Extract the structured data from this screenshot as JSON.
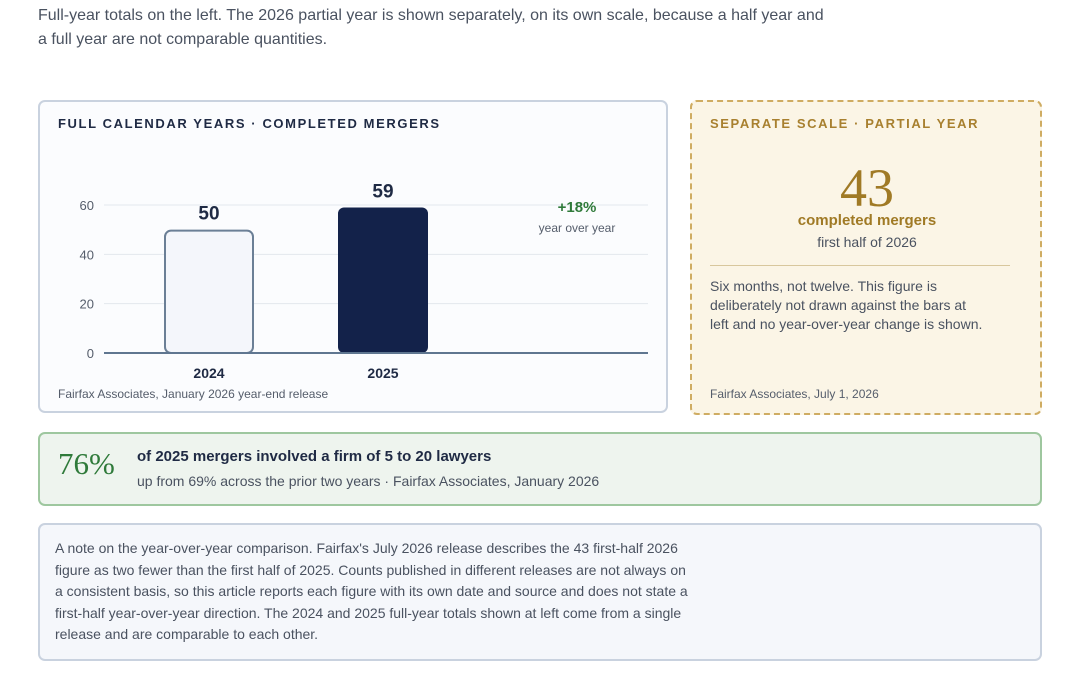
{
  "intro": "Full-year totals on the left. The 2026 partial year is shown separately, on its own scale, because a half year and a full year are not comparable quantities.",
  "full_card": {
    "title": "FULL CALENDAR YEARS · COMPLETED MERGERS",
    "source": "Fairfax Associates, January 2026 year-end release"
  },
  "partial_card": {
    "title": "SEPARATE SCALE · PARTIAL YEAR",
    "value": "43",
    "label": "completed mergers",
    "sublabel": "first half of 2026",
    "note": "Six months, not twelve. This figure is deliberately not drawn against the bars at left and no year-over-year change is shown.",
    "source": "Fairfax Associates, July 1, 2026"
  },
  "stat_card": {
    "value": "76%",
    "headline": "of 2025 mergers involved a firm of 5 to 20 lawyers",
    "sub": "up from 69% across the prior two years · Fairfax Associates, January 2026"
  },
  "note_card": {
    "text": "A note on the year-over-year comparison. Fairfax's July 2026 release describes the 43 first-half 2026 figure as two fewer than the first half of 2025. Counts published in different releases are not always on a consistent basis, so this article reports each figure with its own date and source and does not state a first-half year-over-year direction. The 2024 and 2025 full-year totals shown at left come from a single release and are comparable to each other."
  },
  "chart_data": {
    "type": "bar",
    "categories": [
      "2024",
      "2025"
    ],
    "values": [
      50,
      59
    ],
    "ylim": [
      0,
      60
    ],
    "yticks": [
      0,
      20,
      40,
      60
    ],
    "grid": true,
    "annotation": {
      "value": "+18%",
      "label": "year over year"
    },
    "colors": {
      "bar_2024_fill": "#f4f6fb",
      "bar_2024_stroke": "#6b7f96",
      "bar_2025_fill": "#13224a",
      "axis": "#5f7690",
      "grid": "#e3e7ed",
      "annotation": "#2f7a3a"
    }
  }
}
